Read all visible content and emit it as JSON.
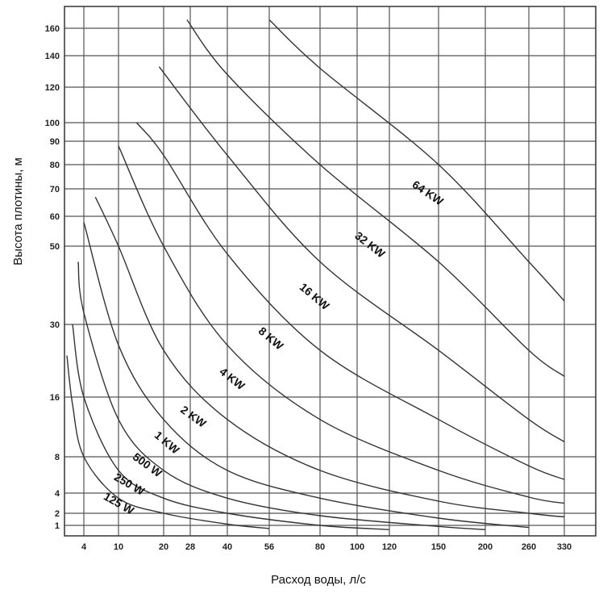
{
  "chart_data": {
    "type": "line",
    "xlabel": "Расход воды, л/с",
    "ylabel": "Высота плотины, м",
    "x_ticks": [
      4,
      10,
      20,
      28,
      40,
      56,
      80,
      100,
      120,
      150,
      200,
      260,
      330
    ],
    "y_ticks": [
      1,
      2,
      4,
      8,
      16,
      30,
      50,
      60,
      70,
      80,
      90,
      100,
      120,
      140,
      160
    ],
    "grid": true,
    "series": [
      {
        "name": "125 W",
        "points": [
          [
            1,
            24
          ],
          [
            2,
            15
          ],
          [
            4,
            8
          ],
          [
            10,
            3.5
          ],
          [
            20,
            2
          ],
          [
            40,
            1.1
          ],
          [
            56,
            0.7
          ]
        ]
      },
      {
        "name": "250 W",
        "points": [
          [
            2,
            30
          ],
          [
            4,
            16
          ],
          [
            10,
            6.5
          ],
          [
            20,
            3.5
          ],
          [
            40,
            2
          ],
          [
            80,
            1
          ],
          [
            120,
            0.6
          ]
        ]
      },
      {
        "name": "500 W",
        "points": [
          [
            3,
            46
          ],
          [
            4,
            33
          ],
          [
            10,
            13
          ],
          [
            20,
            6.5
          ],
          [
            40,
            3.5
          ],
          [
            80,
            1.8
          ],
          [
            150,
            0.9
          ],
          [
            200,
            0.6
          ]
        ]
      },
      {
        "name": "1 KW",
        "points": [
          [
            4,
            58
          ],
          [
            10,
            26
          ],
          [
            20,
            13
          ],
          [
            40,
            6.5
          ],
          [
            80,
            3.5
          ],
          [
            150,
            1.6
          ],
          [
            260,
            0.8
          ]
        ]
      },
      {
        "name": "2 KW",
        "points": [
          [
            6,
            67
          ],
          [
            10,
            50
          ],
          [
            20,
            25
          ],
          [
            40,
            13
          ],
          [
            80,
            6.5
          ],
          [
            150,
            3.2
          ],
          [
            260,
            2
          ],
          [
            330,
            1.7
          ]
        ]
      },
      {
        "name": "4 KW",
        "points": [
          [
            10,
            88
          ],
          [
            20,
            50
          ],
          [
            40,
            26
          ],
          [
            80,
            13
          ],
          [
            150,
            6.5
          ],
          [
            260,
            3.6
          ],
          [
            330,
            3
          ]
        ]
      },
      {
        "name": "8 KW",
        "points": [
          [
            14,
            100
          ],
          [
            20,
            84
          ],
          [
            40,
            48
          ],
          [
            80,
            25
          ],
          [
            150,
            13
          ],
          [
            260,
            7
          ],
          [
            330,
            5.5
          ]
        ]
      },
      {
        "name": "16 KW",
        "points": [
          [
            19,
            133
          ],
          [
            40,
            84
          ],
          [
            80,
            46
          ],
          [
            150,
            25
          ],
          [
            260,
            13
          ],
          [
            330,
            10
          ]
        ]
      },
      {
        "name": "32 KW",
        "points": [
          [
            27,
            166
          ],
          [
            40,
            128
          ],
          [
            80,
            80
          ],
          [
            150,
            46
          ],
          [
            260,
            25
          ],
          [
            330,
            20
          ]
        ]
      },
      {
        "name": "64 KW",
        "points": [
          [
            56,
            166
          ],
          [
            80,
            132
          ],
          [
            150,
            80
          ],
          [
            260,
            46
          ],
          [
            330,
            36
          ]
        ]
      }
    ]
  }
}
